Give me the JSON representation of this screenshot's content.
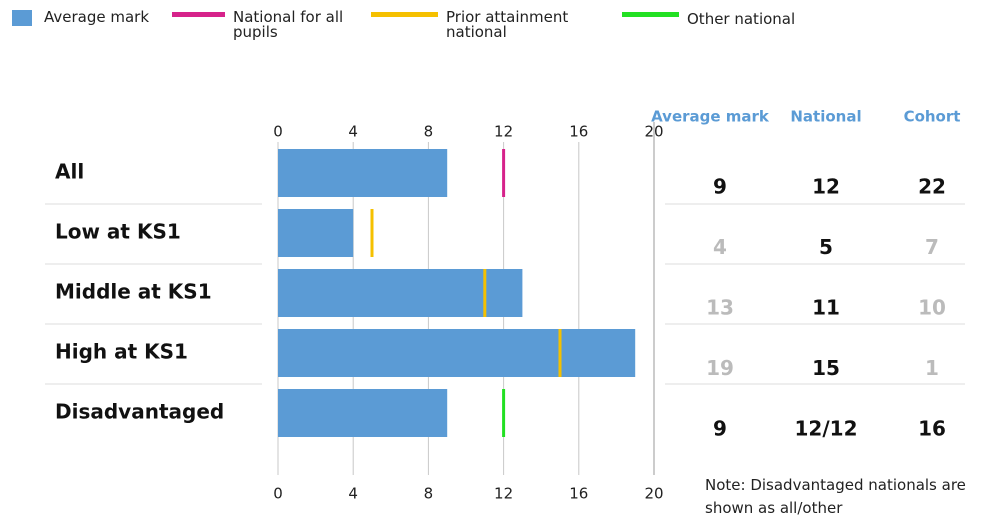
{
  "chart_data": {
    "type": "bar",
    "orientation": "horizontal",
    "categories": [
      "All",
      "Low at KS1",
      "Middle at KS1",
      "High at KS1",
      "Disadvantaged"
    ],
    "series": [
      {
        "name": "Average mark",
        "color": "#5b9bd5",
        "values": [
          9,
          4,
          13,
          19,
          9
        ]
      },
      {
        "name": "National for all pupils",
        "color": "#d6228a",
        "values": [
          12,
          null,
          null,
          null,
          null
        ]
      },
      {
        "name": "Prior attainment national",
        "color": "#f5c000",
        "values": [
          null,
          5,
          11,
          15,
          null
        ]
      },
      {
        "name": "Other national",
        "color": "#22e022",
        "values": [
          null,
          null,
          null,
          null,
          12
        ]
      }
    ],
    "xlim": [
      0,
      20
    ],
    "xticks": [
      0,
      4,
      8,
      12,
      16,
      20
    ],
    "grid": true
  },
  "table": {
    "columns": [
      "Average mark",
      "National",
      "Cohort"
    ],
    "rows": [
      [
        "9",
        "12",
        "22"
      ],
      [
        "4",
        "5",
        "7"
      ],
      [
        "13",
        "11",
        "10"
      ],
      [
        "19",
        "15",
        "1"
      ],
      [
        "9",
        "12/12",
        "16"
      ]
    ]
  },
  "note": "Note: Disadvantaged nationals are shown as all/other"
}
